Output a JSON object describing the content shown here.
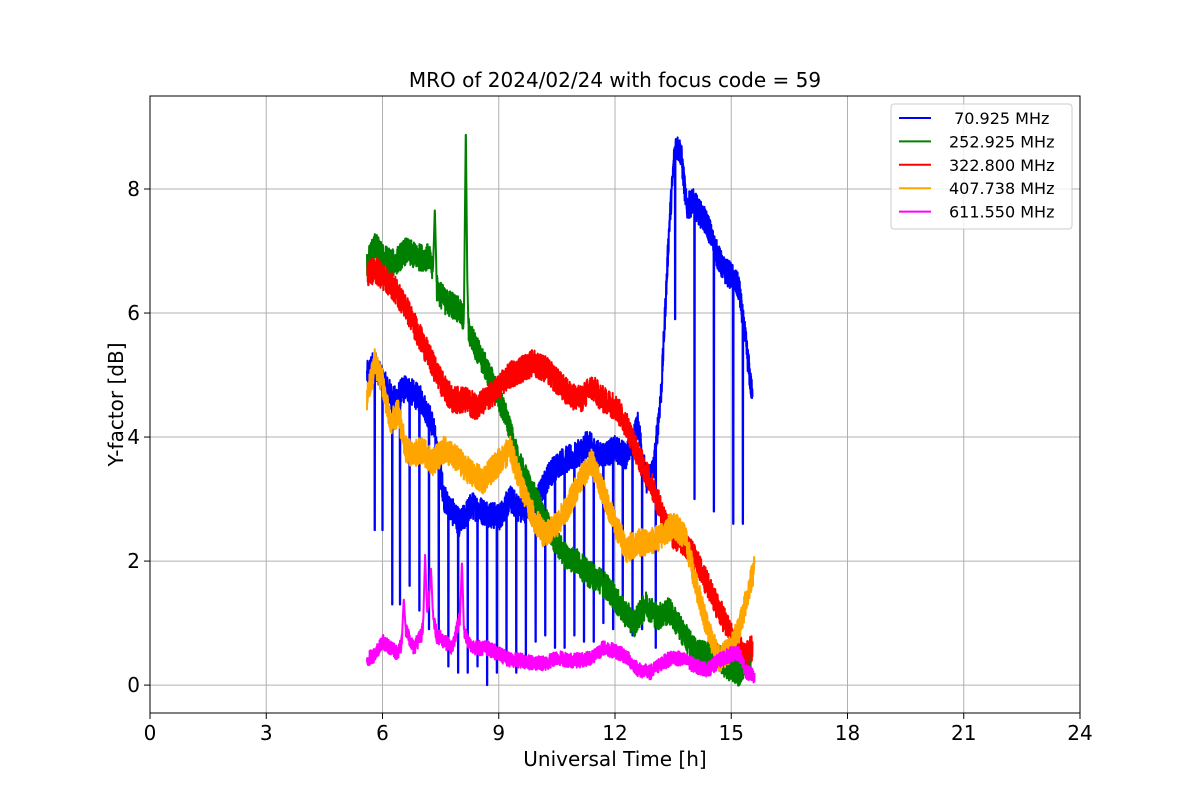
{
  "chart_data": {
    "type": "line",
    "title": "MRO of 2024/02/24 with focus code = 59",
    "xlabel": "Universal Time [h]",
    "ylabel": "Y-factor [dB]",
    "xlim": [
      0,
      24
    ],
    "ylim": [
      -0.45,
      9.5
    ],
    "xticks": [
      0,
      3,
      6,
      9,
      12,
      15,
      18,
      21,
      24
    ],
    "yticks": [
      0,
      2,
      4,
      6,
      8
    ],
    "grid": true,
    "legend_position": "top-right",
    "series": [
      {
        "name": " 70.925 MHz",
        "color": "#0000ff",
        "x": [
          5.6,
          5.8,
          6.0,
          6.3,
          6.6,
          7.0,
          7.3,
          7.6,
          8.0,
          8.3,
          8.6,
          9.0,
          9.3,
          9.6,
          10.0,
          10.3,
          10.6,
          11.0,
          11.3,
          11.6,
          12.0,
          12.3,
          12.6,
          12.8,
          13.0,
          13.2,
          13.4,
          13.55,
          13.7,
          13.85,
          14.0,
          14.2,
          14.4,
          14.6,
          14.8,
          15.0,
          15.2,
          15.4,
          15.55
        ],
        "y": [
          5.0,
          5.2,
          4.9,
          4.6,
          4.8,
          4.6,
          4.2,
          3.0,
          2.6,
          2.9,
          2.8,
          2.7,
          3.0,
          2.8,
          3.0,
          3.4,
          3.6,
          3.7,
          3.9,
          3.7,
          3.8,
          3.7,
          4.2,
          3.3,
          3.5,
          4.8,
          7.4,
          8.7,
          8.6,
          7.7,
          7.8,
          7.6,
          7.4,
          7.0,
          6.7,
          6.6,
          6.4,
          5.4,
          4.6
        ],
        "dip_times": [
          5.8,
          6.0,
          6.25,
          6.45,
          6.7,
          6.95,
          7.2,
          7.45,
          7.7,
          7.95,
          8.2,
          8.45,
          8.7,
          8.95,
          9.2,
          9.45,
          9.7,
          9.95,
          10.2,
          10.45,
          10.7,
          10.95,
          11.2,
          11.45,
          11.7,
          11.95,
          12.2,
          12.45,
          12.7,
          13.05,
          13.55,
          14.05,
          14.55,
          15.05,
          15.3
        ],
        "dip_values": [
          2.5,
          2.5,
          1.3,
          1.3,
          1.6,
          1.2,
          0.9,
          0.9,
          0.3,
          0.2,
          0.2,
          0.3,
          0.0,
          0.2,
          0.4,
          0.2,
          0.3,
          0.7,
          0.8,
          0.6,
          0.6,
          0.8,
          0.7,
          0.7,
          1.0,
          0.9,
          1.1,
          0.8,
          0.9,
          0.6,
          5.9,
          3.0,
          2.8,
          2.6,
          2.6
        ]
      },
      {
        "name": "252.925 MHz",
        "color": "#008000",
        "x": [
          5.6,
          5.8,
          6.0,
          6.3,
          6.6,
          6.9,
          7.2,
          7.4,
          7.6,
          7.9,
          8.1,
          8.3,
          8.6,
          8.9,
          9.2,
          9.5,
          9.8,
          10.1,
          10.4,
          10.7,
          11.0,
          11.3,
          11.6,
          11.9,
          12.2,
          12.5,
          12.8,
          13.1,
          13.4,
          13.7,
          14.0,
          14.3,
          14.6,
          14.9,
          15.2,
          15.5
        ],
        "y": [
          6.8,
          7.1,
          6.9,
          6.8,
          7.0,
          6.9,
          6.9,
          6.4,
          6.2,
          6.1,
          5.9,
          5.6,
          5.2,
          4.8,
          4.3,
          3.6,
          3.2,
          2.8,
          2.4,
          2.1,
          2.0,
          1.8,
          1.7,
          1.5,
          1.2,
          1.0,
          1.3,
          1.1,
          1.2,
          0.9,
          0.6,
          0.5,
          0.5,
          0.3,
          0.2,
          0.5
        ],
        "spikes": [
          [
            7.35,
            7.7
          ],
          [
            8.15,
            9.0
          ],
          [
            8.17,
            7.0
          ]
        ]
      },
      {
        "name": "322.800 MHz",
        "color": "#ff0000",
        "x": [
          5.6,
          5.8,
          6.0,
          6.3,
          6.6,
          6.9,
          7.2,
          7.5,
          7.8,
          8.1,
          8.4,
          8.7,
          9.0,
          9.3,
          9.6,
          9.9,
          10.2,
          10.5,
          10.8,
          11.1,
          11.4,
          11.7,
          12.0,
          12.3,
          12.6,
          12.9,
          13.2,
          13.5,
          13.8,
          14.1,
          14.4,
          14.7,
          15.0,
          15.2,
          15.4,
          15.55
        ],
        "y": [
          6.6,
          6.7,
          6.6,
          6.4,
          6.1,
          5.7,
          5.3,
          4.9,
          4.6,
          4.6,
          4.5,
          4.6,
          4.8,
          5.0,
          5.1,
          5.2,
          5.1,
          4.9,
          4.7,
          4.6,
          4.8,
          4.6,
          4.5,
          4.2,
          3.7,
          3.3,
          2.8,
          2.4,
          2.3,
          2.0,
          1.6,
          1.2,
          0.8,
          0.6,
          0.5,
          0.6
        ]
      },
      {
        "name": "407.738 MHz",
        "color": "#ffa500",
        "x": [
          5.6,
          5.8,
          6.0,
          6.2,
          6.4,
          6.6,
          6.8,
          7.0,
          7.3,
          7.6,
          8.0,
          8.3,
          8.6,
          9.0,
          9.3,
          9.6,
          9.9,
          10.2,
          10.5,
          10.8,
          11.1,
          11.4,
          11.7,
          12.0,
          12.3,
          12.6,
          12.9,
          13.2,
          13.5,
          13.8,
          14.1,
          14.4,
          14.7,
          15.0,
          15.2,
          15.4,
          15.6
        ],
        "y": [
          4.6,
          5.2,
          4.9,
          4.2,
          4.4,
          3.8,
          3.7,
          3.8,
          3.6,
          3.8,
          3.6,
          3.4,
          3.3,
          3.6,
          3.8,
          3.2,
          2.7,
          2.4,
          2.6,
          2.9,
          3.3,
          3.6,
          3.1,
          2.6,
          2.2,
          2.3,
          2.3,
          2.4,
          2.6,
          2.4,
          1.6,
          0.9,
          0.4,
          0.6,
          0.9,
          1.4,
          1.9
        ]
      },
      {
        "name": "611.550 MHz",
        "color": "#ff00ff",
        "x": [
          5.6,
          5.8,
          6.0,
          6.2,
          6.4,
          6.6,
          6.8,
          7.0,
          7.2,
          7.4,
          7.6,
          7.8,
          8.0,
          8.2,
          8.4,
          8.7,
          9.0,
          9.3,
          9.6,
          9.9,
          10.2,
          10.5,
          10.8,
          11.1,
          11.4,
          11.7,
          12.0,
          12.3,
          12.6,
          12.9,
          13.2,
          13.5,
          13.8,
          14.1,
          14.4,
          14.7,
          15.0,
          15.2,
          15.4,
          15.6
        ],
        "y": [
          0.4,
          0.5,
          0.7,
          0.6,
          0.5,
          0.9,
          0.6,
          0.8,
          1.4,
          0.8,
          0.7,
          0.6,
          1.1,
          0.7,
          0.6,
          0.6,
          0.5,
          0.4,
          0.4,
          0.35,
          0.35,
          0.45,
          0.4,
          0.4,
          0.45,
          0.6,
          0.55,
          0.45,
          0.25,
          0.2,
          0.35,
          0.45,
          0.4,
          0.3,
          0.25,
          0.4,
          0.5,
          0.5,
          0.2,
          0.15
        ],
        "spikes": [
          [
            6.55,
            1.4
          ],
          [
            7.1,
            2.1
          ],
          [
            7.25,
            1.9
          ],
          [
            8.05,
            2.0
          ]
        ]
      }
    ]
  }
}
